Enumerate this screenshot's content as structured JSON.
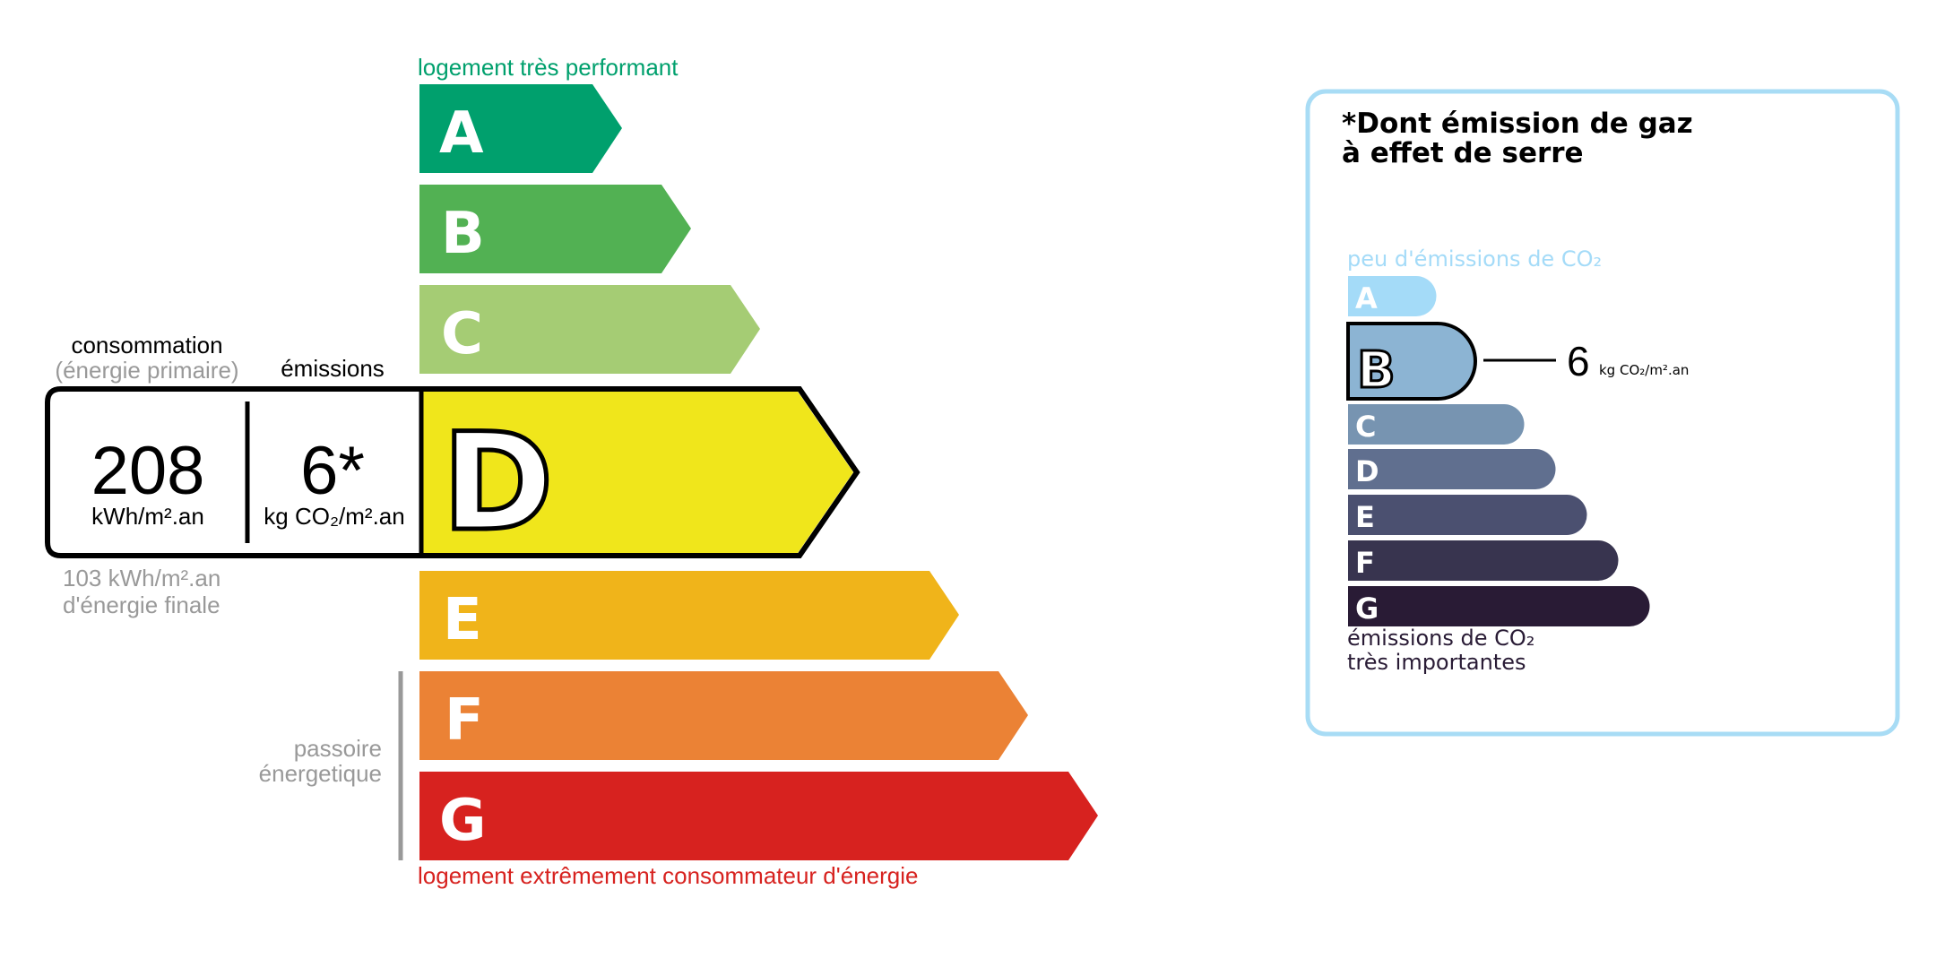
{
  "energy": {
    "top_label": "logement très performant",
    "bottom_label": "logement extrêmement consommateur d'énergie",
    "passoire_label": [
      "passoire",
      "énergetique"
    ],
    "classes": [
      {
        "letter": "A",
        "color": "#00a06d"
      },
      {
        "letter": "B",
        "color": "#52b153"
      },
      {
        "letter": "C",
        "color": "#a5cc74"
      },
      {
        "letter": "D",
        "color": "#f0e61b"
      },
      {
        "letter": "E",
        "color": "#f0b41a"
      },
      {
        "letter": "F",
        "color": "#eb8235"
      },
      {
        "letter": "G",
        "color": "#d7221f"
      }
    ],
    "current_class": "D",
    "consumption_header": "consommation",
    "consumption_subheader": "(énergie primaire)",
    "emissions_header": "émissions",
    "consumption_value": "208",
    "consumption_unit": "kWh/m².an",
    "emissions_value": "6*",
    "emissions_unit": "kg CO₂/m².an",
    "final_energy_value": "103 kWh/m².an",
    "final_energy_label": "d'énergie finale"
  },
  "ges": {
    "title_line1": "*Dont émission de gaz",
    "title_line2": "à effet de serre",
    "top_label": "peu d'émissions de CO₂",
    "bottom_label_line1": "émissions de CO₂",
    "bottom_label_line2": "très importantes",
    "classes": [
      {
        "letter": "A",
        "color": "#a4dbf8"
      },
      {
        "letter": "B",
        "color": "#8cb4d3"
      },
      {
        "letter": "C",
        "color": "#7794b1"
      },
      {
        "letter": "D",
        "color": "#606f8f"
      },
      {
        "letter": "E",
        "color": "#4b5070"
      },
      {
        "letter": "F",
        "color": "#38344f"
      },
      {
        "letter": "G",
        "color": "#291b35"
      }
    ],
    "current_class": "B",
    "value": "6",
    "unit": "kg CO₂/m².an",
    "border_color": "#a8dcf5"
  }
}
